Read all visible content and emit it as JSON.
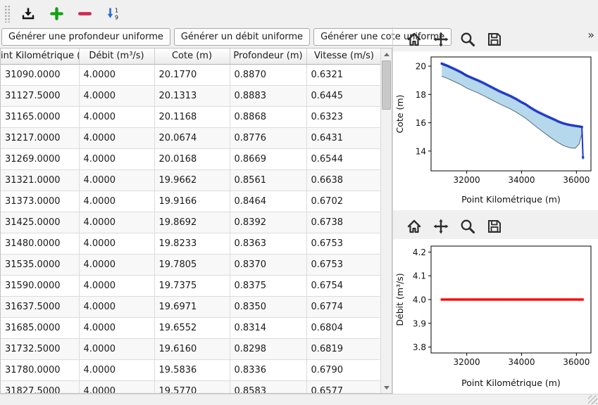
{
  "main_toolbar": {
    "items": [
      {
        "name": "export",
        "icon": "download-icon"
      },
      {
        "name": "add-row",
        "icon": "plus-icon",
        "color": "#12a212"
      },
      {
        "name": "remove-row",
        "icon": "minus-icon",
        "color": "#d02a50"
      },
      {
        "name": "sort",
        "icon": "sort-numeric-down-icon",
        "color": "#2f6bd7"
      }
    ],
    "sort_digits": [
      "1",
      "9"
    ]
  },
  "generator_buttons": [
    "Générer une profondeur uniforme",
    "Générer un débit uniforme",
    "Générer une cote uniforme"
  ],
  "table": {
    "columns": [
      "int Kilométrique (",
      "Débit (m³/s)",
      "Cote (m)",
      "Profondeur (m)",
      "Vitesse (m/s)"
    ],
    "rows": [
      [
        "31090.0000",
        "4.0000",
        "20.1770",
        "0.8870",
        "0.6321"
      ],
      [
        "31127.5000",
        "4.0000",
        "20.1313",
        "0.8883",
        "0.6445"
      ],
      [
        "31165.0000",
        "4.0000",
        "20.1168",
        "0.8868",
        "0.6323"
      ],
      [
        "31217.0000",
        "4.0000",
        "20.0674",
        "0.8776",
        "0.6431"
      ],
      [
        "31269.0000",
        "4.0000",
        "20.0168",
        "0.8669",
        "0.6544"
      ],
      [
        "31321.0000",
        "4.0000",
        "19.9662",
        "0.8561",
        "0.6638"
      ],
      [
        "31373.0000",
        "4.0000",
        "19.9166",
        "0.8464",
        "0.6702"
      ],
      [
        "31425.0000",
        "4.0000",
        "19.8692",
        "0.8392",
        "0.6738"
      ],
      [
        "31480.0000",
        "4.0000",
        "19.8233",
        "0.8363",
        "0.6753"
      ],
      [
        "31535.0000",
        "4.0000",
        "19.7805",
        "0.8370",
        "0.6753"
      ],
      [
        "31590.0000",
        "4.0000",
        "19.7375",
        "0.8375",
        "0.6754"
      ],
      [
        "31637.5000",
        "4.0000",
        "19.6971",
        "0.8350",
        "0.6774"
      ],
      [
        "31685.0000",
        "4.0000",
        "19.6552",
        "0.8314",
        "0.6804"
      ],
      [
        "31732.5000",
        "4.0000",
        "19.6160",
        "0.8298",
        "0.6819"
      ],
      [
        "31780.0000",
        "4.0000",
        "19.5836",
        "0.8336",
        "0.6790"
      ],
      [
        "31827.5000",
        "4.0000",
        "19.5770",
        "0.8583",
        "0.6577"
      ]
    ]
  },
  "charts": {
    "toolbar_icons": [
      "home",
      "pan",
      "zoom",
      "save"
    ],
    "overflow": "»"
  },
  "chart_data": [
    {
      "type": "line+area",
      "title": "",
      "xlabel": "Point Kilométrique (m)",
      "ylabel": "Cote (m)",
      "xlim": [
        30700,
        36530
      ],
      "ylim": [
        12.6,
        20.65
      ],
      "xticks": [
        "32000",
        "34000",
        "36000"
      ],
      "yticks": [
        "14",
        "16",
        "18",
        "20"
      ],
      "grid": false,
      "legend": "none",
      "fill": {
        "upper": "cote",
        "lower": "fond",
        "color": "#b5d8ec"
      },
      "series": [
        {
          "name": "fond",
          "color": "#5a6c78",
          "width": 1,
          "markers": false,
          "x": [
            31090,
            31300,
            31550,
            31780,
            32000,
            32200,
            32400,
            32600,
            32800,
            33000,
            33200,
            33400,
            33600,
            33800,
            34000,
            34150,
            34300,
            34450,
            34600,
            34750,
            34900,
            35050,
            35200,
            35350,
            35500,
            35650,
            35800,
            35950,
            36100,
            36200,
            36240
          ],
          "y": [
            19.29,
            19.13,
            18.91,
            18.7,
            18.45,
            18.28,
            18.12,
            17.93,
            17.73,
            17.53,
            17.33,
            17.15,
            16.97,
            16.75,
            16.5,
            16.32,
            16.08,
            15.85,
            15.62,
            15.4,
            15.18,
            14.97,
            14.77,
            14.58,
            14.42,
            14.3,
            14.22,
            14.2,
            14.5,
            15.25,
            13.4
          ]
        },
        {
          "name": "cote",
          "color": "#2038c8",
          "width": 2,
          "markers": true,
          "marker_step": 46,
          "x": [
            31090,
            31300,
            31550,
            31780,
            32000,
            32200,
            32400,
            32600,
            32800,
            33000,
            33200,
            33400,
            33600,
            33800,
            34000,
            34150,
            34300,
            34450,
            34600,
            34750,
            34900,
            35050,
            35200,
            35350,
            35500,
            35650,
            35800,
            35950,
            36100,
            36200,
            36240
          ],
          "y": [
            20.18,
            20.02,
            19.8,
            19.58,
            19.33,
            19.16,
            19.0,
            18.82,
            18.62,
            18.42,
            18.22,
            18.05,
            17.88,
            17.68,
            17.45,
            17.3,
            17.1,
            16.92,
            16.76,
            16.62,
            16.48,
            16.35,
            16.22,
            16.08,
            15.97,
            15.89,
            15.83,
            15.78,
            15.74,
            15.7,
            13.55
          ]
        }
      ]
    },
    {
      "type": "line",
      "title": "",
      "xlabel": "Point Kilométrique (m)",
      "ylabel": "Débit (m³/s)",
      "xlim": [
        30700,
        36530
      ],
      "ylim": [
        3.775,
        4.225
      ],
      "xticks": [
        "32000",
        "34000",
        "36000"
      ],
      "yticks": [
        "3.8",
        "3.9",
        "4.0",
        "4.1",
        "4.2"
      ],
      "grid": false,
      "legend": "none",
      "series": [
        {
          "name": "debit",
          "color": "#ff0000",
          "width": 1.5,
          "markers": true,
          "marker_step": 37.5,
          "const_value": 4.0,
          "x_start": 31090,
          "x_end": 36240,
          "step": 37.5
        }
      ]
    }
  ]
}
